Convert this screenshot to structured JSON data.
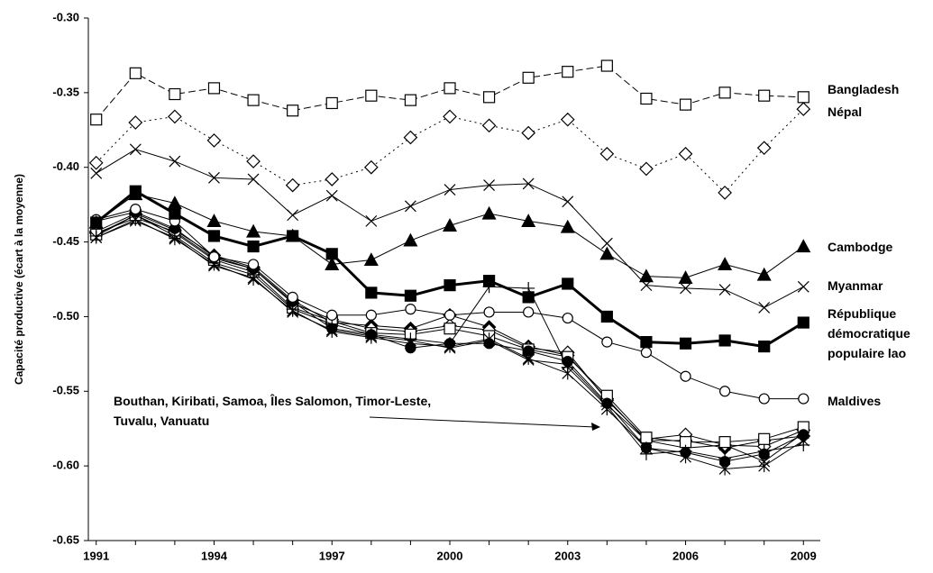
{
  "chart_data": {
    "type": "line",
    "y_label": "Capacité productive (écart à la moyenne)",
    "annotation": "Bouthan, Kiribati, Samoa, Îles Salomon, Timor-Leste, Tuvalu, Vanuatu",
    "x": [
      1991,
      1992,
      1993,
      1994,
      1995,
      1996,
      1997,
      1998,
      1999,
      2000,
      2001,
      2002,
      2003,
      2004,
      2005,
      2006,
      2007,
      2008,
      2009
    ],
    "xlim": [
      1990.8,
      2009.2
    ],
    "xticks": [
      1991,
      1994,
      1997,
      2000,
      2003,
      2006,
      2009
    ],
    "ylim": [
      -0.65,
      -0.3
    ],
    "yticks": [
      {
        "value": -0.65,
        "label": "-0.65"
      },
      {
        "value": -0.6,
        "label": "-0.60"
      },
      {
        "value": -0.55,
        "label": "-0.55"
      },
      {
        "value": -0.5,
        "label": "-0.50"
      },
      {
        "value": -0.45,
        "label": "-0.45"
      },
      {
        "value": -0.4,
        "label": "-0.40"
      },
      {
        "value": -0.35,
        "label": "-0.35"
      },
      {
        "value": -0.3,
        "label": "-0.30"
      }
    ],
    "series": [
      {
        "name": "Bangladesh",
        "color": "#000000",
        "marker": "square-open",
        "dash": "8,4",
        "width": 1,
        "values": [
          -0.368,
          -0.337,
          -0.351,
          -0.347,
          -0.355,
          -0.362,
          -0.357,
          -0.352,
          -0.355,
          -0.347,
          -0.353,
          -0.34,
          -0.336,
          -0.332,
          -0.354,
          -0.358,
          -0.35,
          -0.352,
          -0.353
        ]
      },
      {
        "name": "Népal",
        "color": "#000000",
        "marker": "diamond-open",
        "dash": "2,4",
        "width": 1,
        "values": [
          -0.397,
          -0.37,
          -0.366,
          -0.382,
          -0.396,
          -0.412,
          -0.408,
          -0.4,
          -0.38,
          -0.366,
          -0.372,
          -0.377,
          -0.368,
          -0.391,
          -0.401,
          -0.391,
          -0.417,
          -0.387,
          -0.361
        ]
      },
      {
        "name": "Cambodge",
        "color": "#000000",
        "marker": "triangle",
        "width": 1,
        "values": [
          -0.437,
          -0.418,
          -0.424,
          -0.436,
          -0.443,
          -0.446,
          -0.465,
          -0.462,
          -0.449,
          -0.439,
          -0.431,
          -0.436,
          -0.44,
          -0.458,
          -0.473,
          -0.474,
          -0.465,
          -0.472,
          -0.453
        ]
      },
      {
        "name": "Myanmar",
        "color": "#000000",
        "marker": "x",
        "width": 1,
        "values": [
          -0.404,
          -0.388,
          -0.396,
          -0.407,
          -0.408,
          -0.432,
          -0.419,
          -0.436,
          -0.426,
          -0.415,
          -0.412,
          -0.411,
          -0.423,
          -0.451,
          -0.479,
          -0.481,
          -0.482,
          -0.494,
          -0.48
        ]
      },
      {
        "name": "République démocratique populaire lao",
        "color": "#000000",
        "marker": "square",
        "width": 3,
        "values": [
          -0.437,
          -0.416,
          -0.431,
          -0.446,
          -0.453,
          -0.446,
          -0.458,
          -0.484,
          -0.486,
          -0.479,
          -0.476,
          -0.487,
          -0.478,
          -0.5,
          -0.517,
          -0.518,
          -0.516,
          -0.52,
          -0.504
        ]
      },
      {
        "name": "Maldives",
        "color": "#000000",
        "marker": "circle-open",
        "width": 1,
        "values": [
          -0.435,
          -0.428,
          -0.436,
          -0.46,
          -0.465,
          -0.487,
          -0.499,
          -0.499,
          -0.495,
          -0.499,
          -0.497,
          -0.497,
          -0.501,
          -0.517,
          -0.524,
          -0.54,
          -0.55,
          -0.555,
          -0.555
        ]
      },
      {
        "color": "#000000",
        "marker": "circle",
        "width": 1,
        "values": [
          -0.436,
          -0.43,
          -0.441,
          -0.46,
          -0.468,
          -0.49,
          -0.508,
          -0.512,
          -0.521,
          -0.518,
          -0.518,
          -0.523,
          -0.53,
          -0.558,
          -0.588,
          -0.591,
          -0.597,
          -0.592,
          -0.579
        ]
      },
      {
        "color": "#000000",
        "marker": "plus",
        "width": 1,
        "values": [
          -0.446,
          -0.432,
          -0.446,
          -0.464,
          -0.472,
          -0.495,
          -0.505,
          -0.512,
          -0.515,
          -0.518,
          -0.48,
          -0.481,
          -0.534,
          -0.56,
          -0.592,
          -0.59,
          -0.595,
          -0.59,
          -0.586
        ]
      },
      {
        "color": "#000000",
        "marker": "star",
        "width": 1,
        "values": [
          -0.447,
          -0.435,
          -0.448,
          -0.465,
          -0.475,
          -0.496,
          -0.51,
          -0.514,
          -0.518,
          -0.52,
          -0.515,
          -0.528,
          -0.538,
          -0.562,
          -0.588,
          -0.594,
          -0.602,
          -0.6,
          -0.583
        ]
      },
      {
        "color": "#000000",
        "marker": "square-open",
        "width": 1,
        "values": [
          -0.445,
          -0.432,
          -0.444,
          -0.462,
          -0.47,
          -0.494,
          -0.503,
          -0.511,
          -0.512,
          -0.508,
          -0.513,
          -0.522,
          -0.527,
          -0.553,
          -0.581,
          -0.584,
          -0.584,
          -0.582,
          -0.574
        ]
      },
      {
        "color": "#000000",
        "marker": "diamond-open",
        "width": 1,
        "values": [
          -0.444,
          -0.434,
          -0.443,
          -0.461,
          -0.468,
          -0.491,
          -0.502,
          -0.508,
          -0.51,
          -0.506,
          -0.509,
          -0.521,
          -0.524,
          -0.556,
          -0.582,
          -0.579,
          -0.586,
          -0.587,
          -0.576
        ]
      },
      {
        "color": "#000000",
        "marker": "diamond",
        "width": 1,
        "values": [
          -0.443,
          -0.431,
          -0.442,
          -0.459,
          -0.467,
          -0.489,
          -0.504,
          -0.506,
          -0.508,
          -0.499,
          -0.507,
          -0.52,
          -0.526,
          -0.555,
          -0.583,
          -0.583,
          -0.588,
          -0.583,
          -0.58
        ]
      },
      {
        "color": "#000000",
        "marker": "x",
        "width": 1,
        "values": [
          -0.447,
          -0.436,
          -0.447,
          -0.466,
          -0.474,
          -0.497,
          -0.509,
          -0.513,
          -0.516,
          -0.521,
          -0.516,
          -0.529,
          -0.532,
          -0.559,
          -0.583,
          -0.588,
          -0.586,
          -0.597,
          -0.578
        ]
      }
    ]
  }
}
